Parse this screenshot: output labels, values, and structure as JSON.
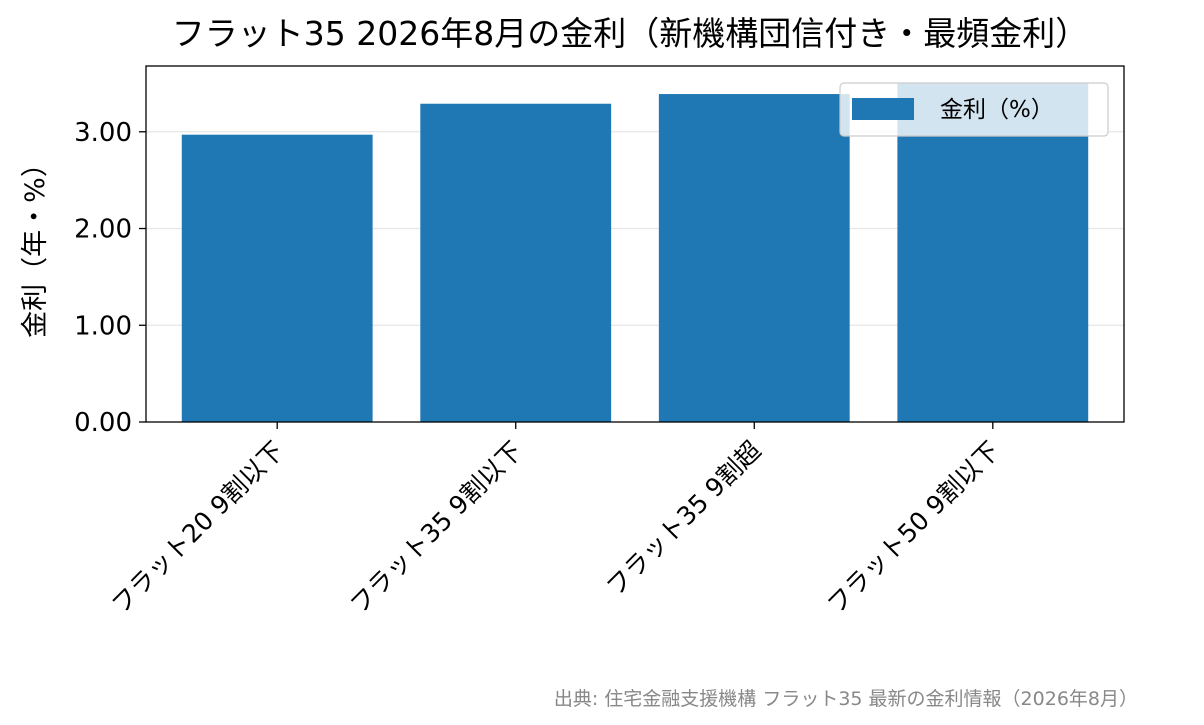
{
  "chart_data": {
    "type": "bar",
    "title": "フラット35 2026年8月の金利（新機構団信付き・最頻金利）",
    "xlabel": "",
    "ylabel": "金利（年・%）",
    "categories": [
      "フラット20 9割以下",
      "フラット35 9割以下",
      "フラット35 9割超",
      "フラット50 9割以下"
    ],
    "series": [
      {
        "name": "金利（%）",
        "values": [
          2.97,
          3.29,
          3.39,
          3.5
        ],
        "color": "#1f77b4"
      }
    ],
    "ylim": [
      0,
      3.68
    ],
    "yticks": [
      0,
      1,
      2,
      3
    ],
    "ytick_labels": [
      "0.00",
      "1.00",
      "2.00",
      "3.00"
    ],
    "grid": "y",
    "legend_position": "upper-right",
    "source": "出典: 住宅金融支援機構 フラット35 最新の金利情報（2026年8月）"
  }
}
